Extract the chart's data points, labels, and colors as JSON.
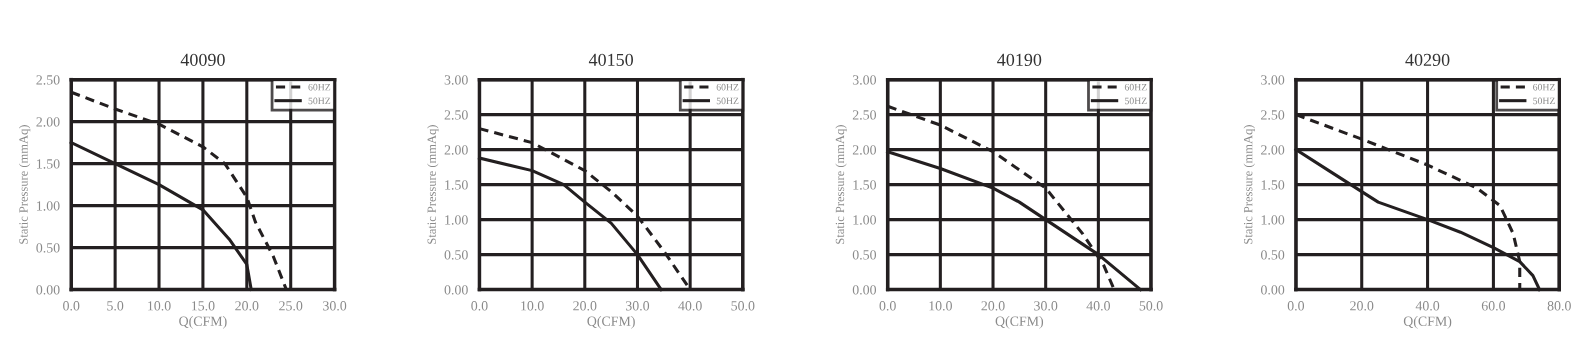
{
  "chart_data": [
    {
      "type": "line",
      "title": "40090",
      "xlabel": "Q(CFM)",
      "ylabel": "Static Pressure (mmAq)",
      "legend": "top right",
      "grid": true,
      "xlim": [
        0,
        30
      ],
      "ylim": [
        0,
        2.5
      ],
      "xticks": [
        {
          "value": 0,
          "label": "0.0"
        },
        {
          "value": 5,
          "label": "5.0"
        },
        {
          "value": 10,
          "label": "10.0"
        },
        {
          "value": 15,
          "label": "15.0"
        },
        {
          "value": 20,
          "label": "20.0"
        },
        {
          "value": 25,
          "label": "25.0"
        },
        {
          "value": 30,
          "label": "30.0"
        }
      ],
      "yticks": [
        {
          "value": 0,
          "label": "0.00"
        },
        {
          "value": 0.5,
          "label": "0.50"
        },
        {
          "value": 1,
          "label": "1.00"
        },
        {
          "value": 1.5,
          "label": "1.50"
        },
        {
          "value": 2,
          "label": "2.00"
        },
        {
          "value": 2.5,
          "label": "2.50"
        }
      ],
      "series": [
        {
          "name": "60HZ",
          "color": "#231f20",
          "line_style": "dashed",
          "x": [
            0,
            5,
            10,
            15,
            17.5,
            20,
            21,
            23,
            24.5
          ],
          "values": [
            2.35,
            2.15,
            1.97,
            1.7,
            1.5,
            1.1,
            0.8,
            0.4,
            0
          ]
        },
        {
          "name": "50HZ",
          "color": "#231f20",
          "line_style": "solid",
          "x": [
            0,
            5,
            10,
            15,
            18,
            20,
            20.5
          ],
          "values": [
            1.75,
            1.5,
            1.25,
            0.95,
            0.6,
            0.3,
            0
          ]
        }
      ]
    },
    {
      "type": "line",
      "title": "40150",
      "xlabel": "Q(CFM)",
      "ylabel": "Static Pressure (mmAq)",
      "legend": "top right",
      "grid": true,
      "xlim": [
        0,
        50
      ],
      "ylim": [
        0,
        3
      ],
      "xticks": [
        {
          "value": 0,
          "label": "0.0"
        },
        {
          "value": 10,
          "label": "10.0"
        },
        {
          "value": 20,
          "label": "20.0"
        },
        {
          "value": 30,
          "label": "30.0"
        },
        {
          "value": 40,
          "label": "40.0"
        },
        {
          "value": 50,
          "label": "50.0"
        }
      ],
      "yticks": [
        {
          "value": 0,
          "label": "0.00"
        },
        {
          "value": 0.5,
          "label": "0.50"
        },
        {
          "value": 1,
          "label": "1.00"
        },
        {
          "value": 1.5,
          "label": "1.50"
        },
        {
          "value": 2,
          "label": "2.00"
        },
        {
          "value": 2.5,
          "label": "2.50"
        },
        {
          "value": 3,
          "label": "3.00"
        }
      ],
      "series": [
        {
          "name": "60HZ",
          "color": "#231f20",
          "line_style": "dashed",
          "x": [
            0,
            10,
            20,
            25,
            30,
            35,
            40
          ],
          "values": [
            2.3,
            2.1,
            1.7,
            1.4,
            1.05,
            0.55,
            0
          ]
        },
        {
          "name": "50HZ",
          "color": "#231f20",
          "line_style": "solid",
          "x": [
            0,
            10,
            16,
            20,
            25,
            30,
            34.5
          ],
          "values": [
            1.88,
            1.7,
            1.5,
            1.25,
            0.95,
            0.5,
            0
          ]
        }
      ]
    },
    {
      "type": "line",
      "title": "40190",
      "xlabel": "Q(CFM)",
      "ylabel": "Static Pressure (mmAq)",
      "legend": "top right",
      "grid": true,
      "xlim": [
        0,
        50
      ],
      "ylim": [
        0,
        3
      ],
      "xticks": [
        {
          "value": 0,
          "label": "0.0"
        },
        {
          "value": 10,
          "label": "10.0"
        },
        {
          "value": 20,
          "label": "20.0"
        },
        {
          "value": 30,
          "label": "30.0"
        },
        {
          "value": 40,
          "label": "40.0"
        },
        {
          "value": 50,
          "label": "50.0"
        }
      ],
      "yticks": [
        {
          "value": 0,
          "label": "0.00"
        },
        {
          "value": 0.5,
          "label": "0.50"
        },
        {
          "value": 1,
          "label": "1.00"
        },
        {
          "value": 1.5,
          "label": "1.50"
        },
        {
          "value": 2,
          "label": "2.00"
        },
        {
          "value": 2.5,
          "label": "2.50"
        },
        {
          "value": 3,
          "label": "3.00"
        }
      ],
      "series": [
        {
          "name": "60HZ",
          "color": "#231f20",
          "line_style": "dashed",
          "x": [
            0,
            10,
            20,
            30,
            37,
            41,
            43
          ],
          "values": [
            2.62,
            2.35,
            1.97,
            1.45,
            0.8,
            0.35,
            0
          ]
        },
        {
          "name": "50HZ",
          "color": "#231f20",
          "line_style": "solid",
          "x": [
            0,
            10,
            20,
            25,
            30,
            40,
            48
          ],
          "values": [
            1.97,
            1.73,
            1.45,
            1.25,
            1.0,
            0.5,
            0
          ]
        }
      ]
    },
    {
      "type": "line",
      "title": "40290",
      "xlabel": "Q(CFM)",
      "ylabel": "Static Pressure (mmAq)",
      "legend": "top right",
      "grid": true,
      "xlim": [
        0,
        80
      ],
      "ylim": [
        0,
        3
      ],
      "xticks": [
        {
          "value": 0,
          "label": "0.0"
        },
        {
          "value": 20,
          "label": "20.0"
        },
        {
          "value": 40,
          "label": "40.0"
        },
        {
          "value": 60,
          "label": "60.0"
        },
        {
          "value": 80,
          "label": "80.0"
        }
      ],
      "yticks": [
        {
          "value": 0,
          "label": "0.00"
        },
        {
          "value": 0.5,
          "label": "0.50"
        },
        {
          "value": 1,
          "label": "1.00"
        },
        {
          "value": 1.5,
          "label": "1.50"
        },
        {
          "value": 2,
          "label": "2.00"
        },
        {
          "value": 2.5,
          "label": "2.50"
        },
        {
          "value": 3,
          "label": "3.00"
        }
      ],
      "series": [
        {
          "name": "60HZ",
          "color": "#231f20",
          "line_style": "dashed",
          "x": [
            0,
            20,
            40,
            55,
            62,
            66,
            68,
            68
          ],
          "values": [
            2.5,
            2.15,
            1.78,
            1.45,
            1.2,
            0.8,
            0.4,
            0
          ]
        },
        {
          "name": "50HZ",
          "color": "#231f20",
          "line_style": "solid",
          "x": [
            0,
            10,
            20,
            25,
            40,
            50,
            60,
            68,
            72,
            74
          ],
          "values": [
            2.0,
            1.7,
            1.4,
            1.25,
            1.0,
            0.82,
            0.6,
            0.4,
            0.2,
            0
          ]
        }
      ]
    }
  ]
}
